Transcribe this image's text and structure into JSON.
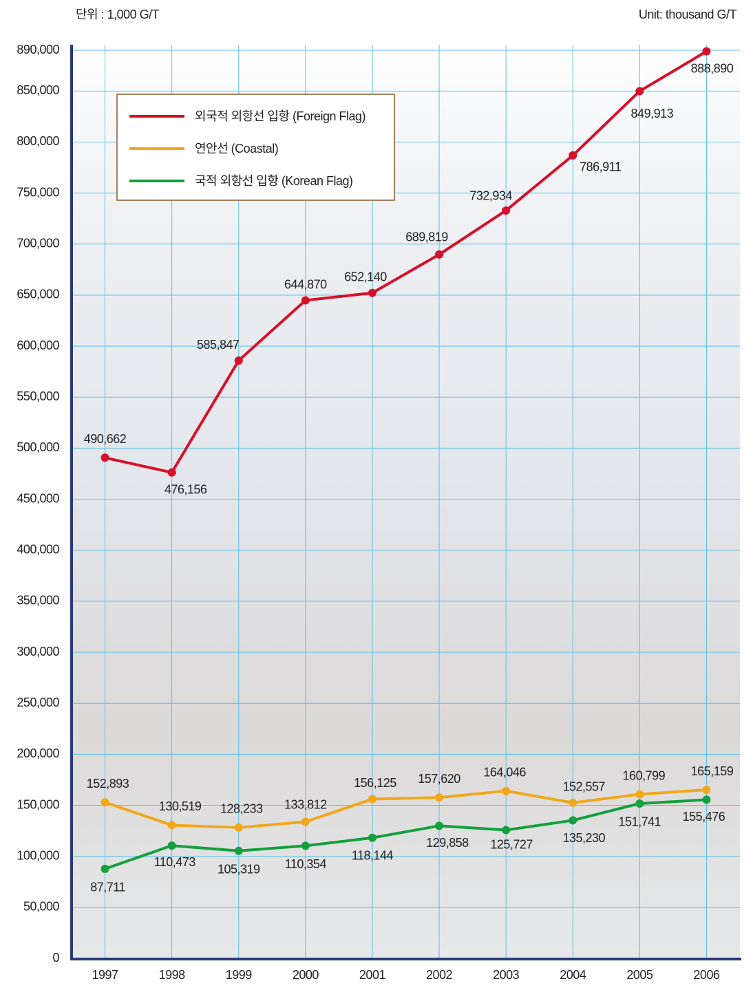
{
  "chart_data": {
    "type": "line",
    "unit_label_ko": "단위 : 1,000 G/T",
    "unit_label_en": "Unit: thousand G/T",
    "categories": [
      "1997",
      "1998",
      "1999",
      "2000",
      "2001",
      "2002",
      "2003",
      "2004",
      "2005",
      "2006"
    ],
    "series": [
      {
        "name": "외국적 외항선 입항 (Foreign Flag)",
        "color": "#d7102a",
        "values": [
          490662,
          476156,
          585847,
          644870,
          652140,
          689819,
          732934,
          786911,
          849913,
          888890
        ],
        "value_labels": [
          "490,662",
          "476,156",
          "585,847",
          "644,870",
          "652,140",
          "689,819",
          "732,934",
          "786,911",
          "849,913",
          "888,890"
        ]
      },
      {
        "name": "연안선 (Coastal)",
        "color": "#f0a81a",
        "values": [
          152893,
          130519,
          128233,
          133812,
          156125,
          157620,
          164046,
          152557,
          160799,
          165159
        ],
        "value_labels": [
          "152,893",
          "130,519",
          "128,233",
          "133,812",
          "156,125",
          "157,620",
          "164,046",
          "152,557",
          "160,799",
          "165,159"
        ]
      },
      {
        "name": "국적 외항선 입항 (Korean Flag)",
        "color": "#14a03c",
        "values": [
          87711,
          110473,
          105319,
          110354,
          118144,
          129858,
          125727,
          135230,
          151741,
          155476
        ],
        "value_labels": [
          "87,711",
          "110,473",
          "105,319",
          "110,354",
          "118,144",
          "129,858",
          "125,727",
          "135,230",
          "151,741",
          "155,476"
        ]
      }
    ],
    "ylim": [
      0,
      890000
    ],
    "yticks": [
      0,
      {
        "value": 50000,
        "label": "50,000"
      },
      {
        "value": 100000,
        "label": "100,000"
      },
      {
        "value": 150000,
        "label": "150,000"
      },
      {
        "value": 200000,
        "label": "200,000"
      },
      {
        "value": 250000,
        "label": "250,000"
      },
      {
        "value": 300000,
        "label": "300,000"
      },
      {
        "value": 350000,
        "label": "350,000"
      },
      {
        "value": 400000,
        "label": "400,000"
      },
      {
        "value": 450000,
        "label": "450,000"
      },
      {
        "value": 500000,
        "label": "500,000"
      },
      {
        "value": 550000,
        "label": "550,000"
      },
      {
        "value": 600000,
        "label": "600,000"
      },
      {
        "value": 650000,
        "label": "650,000"
      },
      {
        "value": 700000,
        "label": "700,000"
      },
      {
        "value": 750000,
        "label": "750,000"
      },
      {
        "value": 800000,
        "label": "800,000"
      },
      {
        "value": 850000,
        "label": "850,000"
      },
      {
        "value": 890000,
        "label": "890,000"
      }
    ],
    "grid": true
  }
}
